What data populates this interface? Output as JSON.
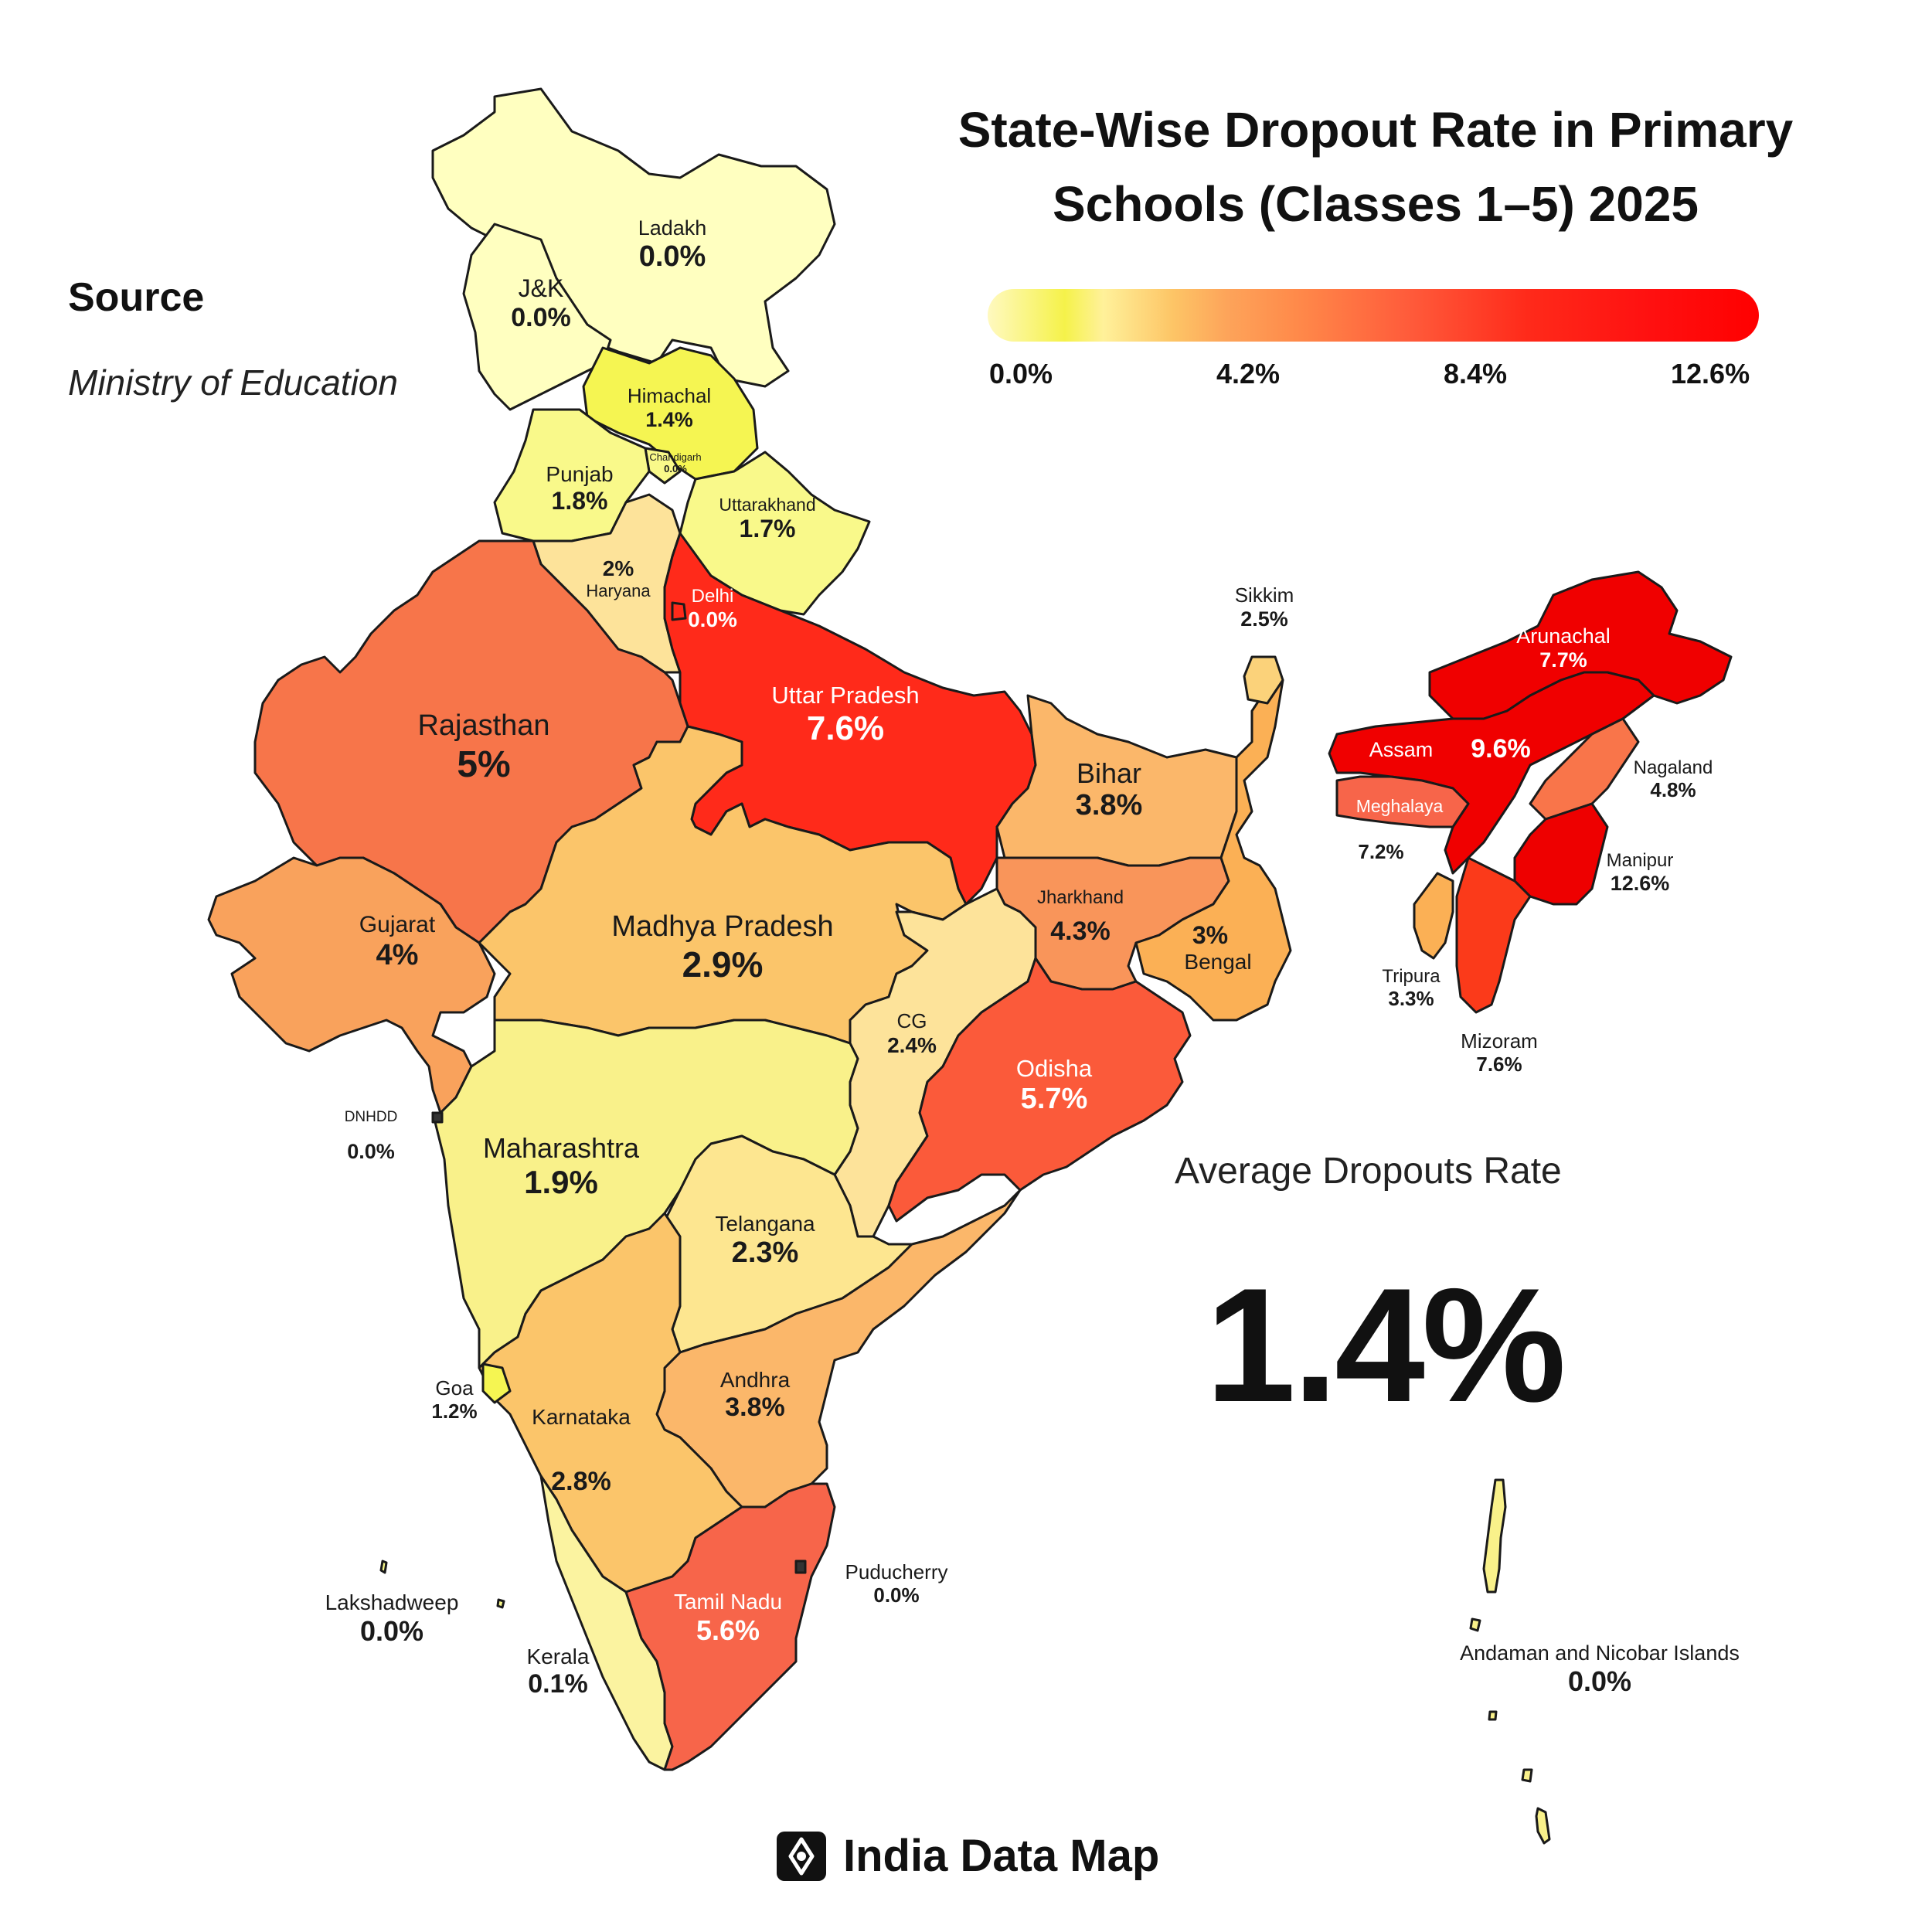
{
  "title_line1": "State-Wise Dropout Rate in Primary",
  "title_line2": "Schools (Classes 1–5) 2025",
  "source": {
    "label": "Source",
    "value": "Ministry of Education"
  },
  "legend": {
    "ticks": [
      "0.0%",
      "4.2%",
      "8.4%",
      "12.6%"
    ],
    "min": 0,
    "max": 12.6
  },
  "average": {
    "label": "Average Dropouts Rate",
    "value": "1.4%"
  },
  "brand": {
    "name": "India Data Map"
  },
  "colors": {
    "yellow_light": "#ffffc0",
    "yellow": "#f9f98a",
    "yellow_bright": "#f5f552",
    "pale_orange": "#fde39a",
    "light_orange": "#fbc56a",
    "orange": "#f9a25c",
    "dark_orange": "#f7754a",
    "red_orange": "#fb5a3a",
    "red": "#ff2a1a",
    "deep_red": "#f00000"
  },
  "regions": [
    {
      "id": "ladakh",
      "name": "Ladakh",
      "value": "0.0%"
    },
    {
      "id": "jk",
      "name": "J&K",
      "value": "0.0%"
    },
    {
      "id": "himachal",
      "name": "Himachal",
      "value": "1.4%"
    },
    {
      "id": "chandigarh",
      "name": "Chandigarh",
      "value": "0.0%"
    },
    {
      "id": "punjab",
      "name": "Punjab",
      "value": "1.8%"
    },
    {
      "id": "uttarakhand",
      "name": "Uttarakhand",
      "value": "1.7%"
    },
    {
      "id": "haryana",
      "name": "Haryana",
      "value": "2%"
    },
    {
      "id": "delhi",
      "name": "Delhi",
      "value": "0.0%"
    },
    {
      "id": "rajasthan",
      "name": "Rajasthan",
      "value": "5%"
    },
    {
      "id": "uttar_pradesh",
      "name": "Uttar Pradesh",
      "value": "7.6%"
    },
    {
      "id": "bihar",
      "name": "Bihar",
      "value": "3.8%"
    },
    {
      "id": "sikkim",
      "name": "Sikkim",
      "value": "2.5%"
    },
    {
      "id": "arunachal",
      "name": "Arunachal",
      "value": "7.7%"
    },
    {
      "id": "assam",
      "name": "Assam",
      "value": "9.6%"
    },
    {
      "id": "meghalaya",
      "name": "Meghalaya",
      "value": "7.2%"
    },
    {
      "id": "nagaland",
      "name": "Nagaland",
      "value": "4.8%"
    },
    {
      "id": "manipur",
      "name": "Manipur",
      "value": "12.6%"
    },
    {
      "id": "tripura",
      "name": "Tripura",
      "value": "3.3%"
    },
    {
      "id": "mizoram",
      "name": "Mizoram",
      "value": "7.6%"
    },
    {
      "id": "gujarat",
      "name": "Gujarat",
      "value": "4%"
    },
    {
      "id": "madhya_pradesh",
      "name": "Madhya Pradesh",
      "value": "2.9%"
    },
    {
      "id": "jharkhand",
      "name": "Jharkhand",
      "value": "4.3%"
    },
    {
      "id": "bengal",
      "name": "Bengal",
      "value": "3%"
    },
    {
      "id": "cg",
      "name": "CG",
      "value": "2.4%"
    },
    {
      "id": "odisha",
      "name": "Odisha",
      "value": "5.7%"
    },
    {
      "id": "dnhdd",
      "name": "DNHDD",
      "value": "0.0%"
    },
    {
      "id": "maharashtra",
      "name": "Maharashtra",
      "value": "1.9%"
    },
    {
      "id": "telangana",
      "name": "Telangana",
      "value": "2.3%"
    },
    {
      "id": "goa",
      "name": "Goa",
      "value": "1.2%"
    },
    {
      "id": "andhra",
      "name": "Andhra",
      "value": "3.8%"
    },
    {
      "id": "karnataka",
      "name": "Karnataka",
      "value": "2.8%"
    },
    {
      "id": "puducherry",
      "name": "Puducherry",
      "value": "0.0%"
    },
    {
      "id": "tamil_nadu",
      "name": "Tamil Nadu",
      "value": "5.6%"
    },
    {
      "id": "lakshadweep",
      "name": "Lakshadweep",
      "value": "0.0%"
    },
    {
      "id": "kerala",
      "name": "Kerala",
      "value": "0.1%"
    },
    {
      "id": "andaman",
      "name": "Andaman and Nicobar Islands",
      "value": "0.0%"
    }
  ]
}
